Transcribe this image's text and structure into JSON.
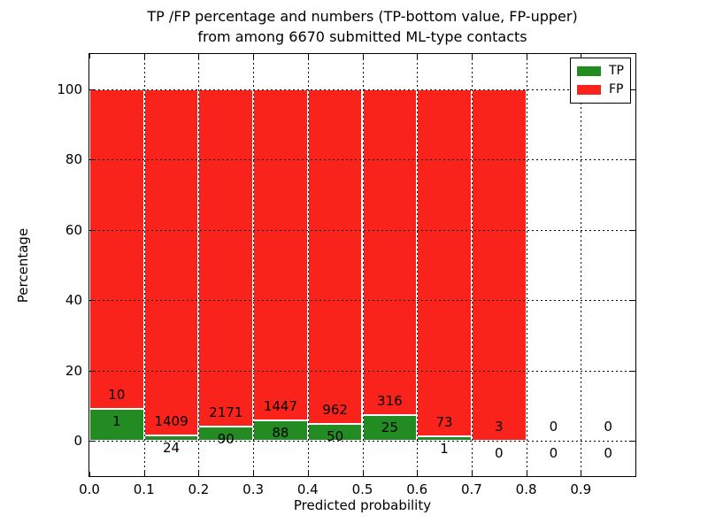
{
  "title": {
    "line1": "TP /FP percentage and numbers (TP-bottom value, FP-upper)",
    "line2": "from among 6670 submitted ML-type contacts"
  },
  "axes": {
    "xlabel": "Predicted probability",
    "ylabel": "Percentage",
    "xlim": [
      0,
      1
    ],
    "ylim": [
      -10,
      110
    ],
    "x_tick_values": [
      0,
      0.1,
      0.2,
      0.3,
      0.4,
      0.5,
      0.6,
      0.7,
      0.8,
      0.9
    ],
    "x_tick_labels": [
      "0.0",
      "0.1",
      "0.2",
      "0.3",
      "0.4",
      "0.5",
      "0.6",
      "0.7",
      "0.8",
      "0.9"
    ],
    "y_tick_values": [
      0,
      20,
      40,
      60,
      80,
      100
    ],
    "y_tick_labels": [
      "0",
      "20",
      "40",
      "60",
      "80",
      "100"
    ],
    "grid": "dotted, drawn above bars"
  },
  "legend": {
    "position": "upper-right",
    "items": [
      {
        "label": "TP",
        "color": "#228b22"
      },
      {
        "label": "FP",
        "color": "#f9231c"
      }
    ]
  },
  "chart_data": {
    "type": "bar",
    "stacked": true,
    "normalized": "each non-empty bin stacks to 100%; green = TP/(TP+FP)*100",
    "title": "TP /FP percentage and numbers (TP-bottom value, FP-upper) from among 6670 submitted ML-type contacts",
    "xlabel": "Predicted probability",
    "ylabel": "Percentage",
    "total_contacts": 6670,
    "bin_width": 0.1,
    "colors": {
      "tp": "#228b22",
      "fp": "#f9231c",
      "bar_edge": "#ffffff"
    },
    "bins": [
      {
        "x_start": 0.0,
        "tp": 1,
        "fp": 10
      },
      {
        "x_start": 0.1,
        "tp": 24,
        "fp": 1409
      },
      {
        "x_start": 0.2,
        "tp": 90,
        "fp": 2171
      },
      {
        "x_start": 0.3,
        "tp": 88,
        "fp": 1447
      },
      {
        "x_start": 0.4,
        "tp": 50,
        "fp": 962
      },
      {
        "x_start": 0.5,
        "tp": 25,
        "fp": 316
      },
      {
        "x_start": 0.6,
        "tp": 1,
        "fp": 73
      },
      {
        "x_start": 0.7,
        "tp": 0,
        "fp": 3
      },
      {
        "x_start": 0.8,
        "tp": 0,
        "fp": 0
      },
      {
        "x_start": 0.9,
        "tp": 0,
        "fp": 0
      }
    ]
  }
}
